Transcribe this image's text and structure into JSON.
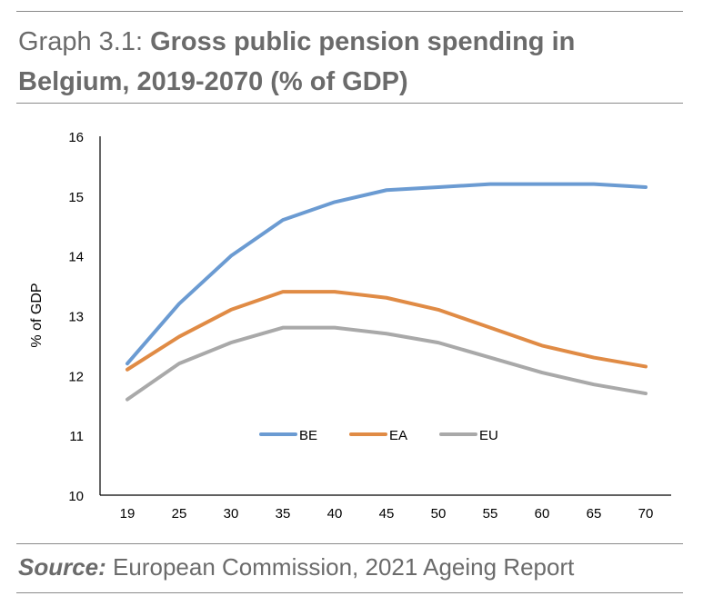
{
  "header": {
    "lead": "Graph 3.1:",
    "title": "Gross public pension spending in Belgium, 2019-2070 (% of GDP)"
  },
  "footer": {
    "source_label": "Source:",
    "source_text": "European Commission, 2021 Ageing Report"
  },
  "chart_data": {
    "type": "line",
    "categories": [
      "19",
      "25",
      "30",
      "35",
      "40",
      "45",
      "50",
      "55",
      "60",
      "65",
      "70"
    ],
    "ylabel": "% of GDP",
    "ylim": [
      10,
      16
    ],
    "yticks": [
      "10",
      "11",
      "12",
      "13",
      "14",
      "15",
      "16"
    ],
    "grid": false,
    "legend_position": "inside-bottom-center",
    "series": [
      {
        "name": "BE",
        "color": "#6b9bd2",
        "values": [
          12.2,
          13.2,
          14.0,
          14.6,
          14.9,
          15.1,
          15.15,
          15.2,
          15.2,
          15.2,
          15.15
        ]
      },
      {
        "name": "EA",
        "color": "#e08b45",
        "values": [
          12.1,
          12.65,
          13.1,
          13.4,
          13.4,
          13.3,
          13.1,
          12.8,
          12.5,
          12.3,
          12.15
        ]
      },
      {
        "name": "EU",
        "color": "#a9a9a9",
        "values": [
          11.6,
          12.2,
          12.55,
          12.8,
          12.8,
          12.7,
          12.55,
          12.3,
          12.05,
          11.85,
          11.7
        ]
      }
    ]
  }
}
